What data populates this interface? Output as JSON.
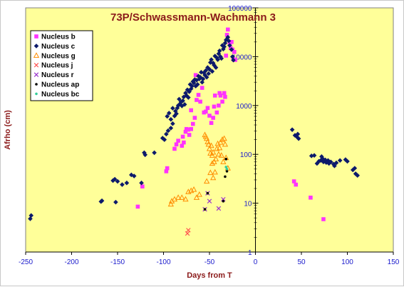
{
  "chart_data": {
    "type": "scatter",
    "title": "73P/Schwassmann-Wachmann 3",
    "xlabel": "Days from T",
    "ylabel": "Afrho (cm)",
    "xlim": [
      -250,
      150
    ],
    "ylim": [
      1,
      100000
    ],
    "yscale": "log",
    "xticks": [
      -250,
      -200,
      -150,
      -100,
      -50,
      0,
      50,
      100,
      150
    ],
    "xtick_labels": [
      "-250",
      "-200",
      "-150",
      "-100",
      "-50",
      "0",
      "50",
      "100",
      "150"
    ],
    "yticks": [
      1,
      10,
      100,
      1000,
      10000,
      100000
    ],
    "ytick_labels": [
      "1",
      "10",
      "100",
      "1000",
      "10000",
      "100000"
    ],
    "legend_position": "top-left",
    "background": "#ffff99",
    "series": [
      {
        "name": "Nucleus b",
        "color": "#ff33ff",
        "marker": "square",
        "points": [
          [
            -128,
            8.5
          ],
          [
            -123,
            22
          ],
          [
            -97,
            45
          ],
          [
            -96,
            52
          ],
          [
            -88,
            130
          ],
          [
            -86,
            160
          ],
          [
            -84,
            190
          ],
          [
            -80,
            150
          ],
          [
            -79,
            230
          ],
          [
            -78,
            175
          ],
          [
            -76,
            290
          ],
          [
            -75,
            330
          ],
          [
            -73,
            320
          ],
          [
            -72,
            250
          ],
          [
            -70,
            330
          ],
          [
            -68,
            420
          ],
          [
            -66,
            560
          ],
          [
            -64,
            1300
          ],
          [
            -62,
            1650
          ],
          [
            -60,
            1200
          ],
          [
            -58,
            2300
          ],
          [
            -56,
            720
          ],
          [
            -54,
            750
          ],
          [
            -52,
            890
          ],
          [
            -50,
            620
          ],
          [
            -48,
            440
          ],
          [
            -46,
            560
          ],
          [
            -45,
            950
          ],
          [
            -44,
            1600
          ],
          [
            -42,
            720
          ],
          [
            -40,
            1000
          ],
          [
            -39,
            1800
          ],
          [
            -38,
            1600
          ],
          [
            -36,
            1200
          ],
          [
            -34,
            1800
          ],
          [
            -33,
            1500
          ],
          [
            -32,
            10500
          ],
          [
            -31,
            28000
          ],
          [
            -30,
            36000
          ],
          [
            -28,
            19000
          ],
          [
            -27,
            15000
          ],
          [
            -26,
            20000
          ],
          [
            -25,
            14000
          ],
          [
            -24,
            9000
          ],
          [
            -23,
            12500
          ],
          [
            -22,
            8600
          ],
          [
            -65,
            4200
          ],
          [
            -70,
            800
          ],
          [
            42,
            28
          ],
          [
            44,
            24
          ],
          [
            60,
            13
          ],
          [
            74,
            4.7
          ]
        ]
      },
      {
        "name": "Nucleus c",
        "color": "#0d1a6b",
        "marker": "diamond",
        "points": [
          [
            -245,
            4.8
          ],
          [
            -244,
            5.6
          ],
          [
            -168,
            10.8
          ],
          [
            -167,
            11.2
          ],
          [
            -152,
            10.5
          ],
          [
            -155,
            29
          ],
          [
            -153,
            31
          ],
          [
            -150,
            28
          ],
          [
            -145,
            24
          ],
          [
            -140,
            26
          ],
          [
            -135,
            38
          ],
          [
            -132,
            36
          ],
          [
            -124,
            26
          ],
          [
            -121,
            108
          ],
          [
            -120,
            98
          ],
          [
            -110,
            108
          ],
          [
            -101,
            215
          ],
          [
            -99,
            200
          ],
          [
            -97,
            260
          ],
          [
            -95,
            305
          ],
          [
            -92,
            345
          ],
          [
            -90,
            425
          ],
          [
            -88,
            610
          ],
          [
            -86,
            680
          ],
          [
            -85,
            890
          ],
          [
            -84,
            1000
          ],
          [
            -82,
            1080
          ],
          [
            -80,
            980
          ],
          [
            -79,
            1250
          ],
          [
            -78,
            1500
          ],
          [
            -76,
            1800
          ],
          [
            -75,
            1600
          ],
          [
            -74,
            2100
          ],
          [
            -72,
            1920
          ],
          [
            -71,
            2700
          ],
          [
            -70,
            2200
          ],
          [
            -69,
            2500
          ],
          [
            -68,
            3100
          ],
          [
            -66,
            3400
          ],
          [
            -64,
            3300
          ],
          [
            -62,
            4000
          ],
          [
            -60,
            3800
          ],
          [
            -58,
            3000
          ],
          [
            -56,
            4700
          ],
          [
            -55,
            4200
          ],
          [
            -54,
            5200
          ],
          [
            -52,
            6000
          ],
          [
            -50,
            5500
          ],
          [
            -49,
            7600
          ],
          [
            -48,
            8700
          ],
          [
            -46,
            7400
          ],
          [
            -44,
            10300
          ],
          [
            -42,
            9500
          ],
          [
            -40,
            11500
          ],
          [
            -39,
            13200
          ],
          [
            -38,
            10000
          ],
          [
            -36,
            17000
          ],
          [
            -35,
            14300
          ],
          [
            -34,
            16000
          ],
          [
            -33,
            19000
          ],
          [
            -32,
            22000
          ],
          [
            -30,
            25000
          ],
          [
            -29,
            21000
          ],
          [
            -28,
            17000
          ],
          [
            -26,
            14000
          ],
          [
            -25,
            10000
          ],
          [
            -24,
            8500
          ],
          [
            -96,
            600
          ],
          [
            -94,
            700
          ],
          [
            -92,
            520
          ],
          [
            -90,
            880
          ],
          [
            -87,
            770
          ],
          [
            -83,
            1350
          ],
          [
            -81,
            1180
          ],
          [
            -77,
            1050
          ],
          [
            -73,
            1460
          ],
          [
            -67,
            2900
          ],
          [
            -65,
            2500
          ],
          [
            -63,
            2700
          ],
          [
            -61,
            3500
          ],
          [
            -59,
            4800
          ],
          [
            -57,
            3500
          ],
          [
            -53,
            3800
          ],
          [
            -51,
            4500
          ],
          [
            -47,
            5000
          ],
          [
            -45,
            6700
          ],
          [
            -43,
            6000
          ],
          [
            -41,
            8700
          ],
          [
            -37,
            9200
          ],
          [
            40,
            320
          ],
          [
            43,
            245
          ],
          [
            45,
            230
          ],
          [
            46,
            260
          ],
          [
            47,
            210
          ],
          [
            61,
            93
          ],
          [
            64,
            95
          ],
          [
            67,
            65
          ],
          [
            69,
            72
          ],
          [
            71,
            75
          ],
          [
            72,
            90
          ],
          [
            73,
            82
          ],
          [
            74,
            70
          ],
          [
            76,
            77
          ],
          [
            77,
            68
          ],
          [
            79,
            75
          ],
          [
            80,
            65
          ],
          [
            82,
            70
          ],
          [
            85,
            63
          ],
          [
            86,
            58
          ],
          [
            88,
            67
          ],
          [
            92,
            75
          ],
          [
            98,
            78
          ],
          [
            100,
            72
          ],
          [
            106,
            48
          ],
          [
            108,
            52
          ],
          [
            109,
            40
          ],
          [
            111,
            37
          ]
        ]
      },
      {
        "name": "Nucleus g",
        "color": "#ff8c00",
        "marker": "triangle-open",
        "points": [
          [
            -92,
            9.5
          ],
          [
            -91,
            11
          ],
          [
            -88,
            12
          ],
          [
            -84,
            13
          ],
          [
            -80,
            13
          ],
          [
            -76,
            12
          ],
          [
            -73,
            17
          ],
          [
            -70,
            18
          ],
          [
            -67,
            19
          ],
          [
            -64,
            13
          ],
          [
            -61,
            15
          ],
          [
            -55,
            250
          ],
          [
            -54,
            230
          ],
          [
            -53,
            210
          ],
          [
            -52,
            180
          ],
          [
            -51,
            160
          ],
          [
            -50,
            130
          ],
          [
            -49,
            105
          ],
          [
            -48,
            150
          ],
          [
            -47,
            95
          ],
          [
            -46,
            110
          ],
          [
            -45,
            70
          ],
          [
            -44,
            43
          ],
          [
            -43,
            80
          ],
          [
            -42,
            130
          ],
          [
            -41,
            165
          ],
          [
            -40,
            100
          ],
          [
            -39,
            135
          ],
          [
            -38,
            175
          ],
          [
            -37,
            95
          ],
          [
            -36,
            200
          ],
          [
            -35,
            70
          ],
          [
            -34,
            210
          ],
          [
            -33,
            160
          ],
          [
            -32,
            85
          ],
          [
            -30,
            52
          ],
          [
            -47,
            65
          ],
          [
            -53,
            28
          ],
          [
            -46,
            33
          ],
          [
            -49,
            42
          ]
        ]
      },
      {
        "name": "Nucleus j",
        "color": "#ff5050",
        "marker": "x",
        "points": [
          [
            -74,
            2.4
          ],
          [
            -73,
            2.8
          ]
        ]
      },
      {
        "name": "Nucleus r",
        "color": "#9933cc",
        "marker": "x",
        "points": [
          [
            -55,
            7.5
          ],
          [
            -52,
            16
          ],
          [
            -50,
            11
          ],
          [
            -40,
            7.8
          ],
          [
            -35,
            12
          ]
        ]
      },
      {
        "name": "Nucleus ap",
        "color": "#000000",
        "marker": "dot",
        "points": [
          [
            -55,
            7.5
          ],
          [
            -52,
            16
          ],
          [
            -35,
            11
          ],
          [
            -33,
            35
          ],
          [
            -32,
            80
          ],
          [
            -31,
            45
          ]
        ]
      },
      {
        "name": "Nucleus bc",
        "color": "#33cc99",
        "marker": "dot",
        "points": [
          [
            -32,
            55
          ],
          [
            -31,
            50
          ]
        ]
      }
    ]
  }
}
